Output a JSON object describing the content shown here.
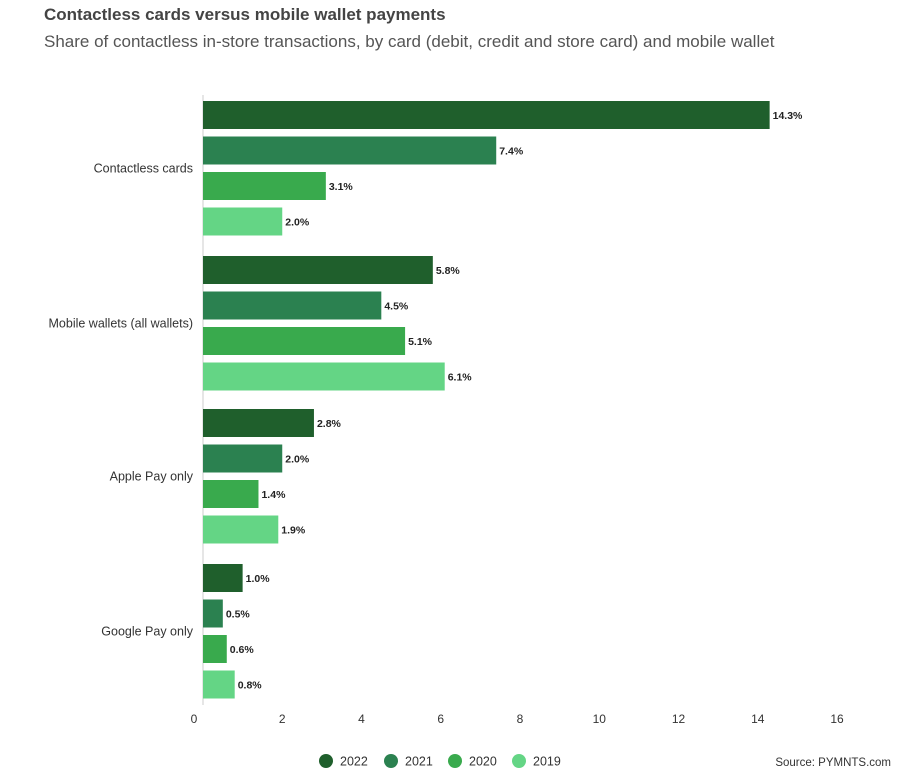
{
  "chart_data": {
    "type": "bar",
    "orientation": "horizontal",
    "title": "Contactless cards versus mobile wallet payments",
    "subtitle": "Share of contactless in-store transactions, by card (debit, credit and store card) and mobile wallet",
    "categories": [
      "Contactless cards",
      "Mobile wallets (all wallets)",
      "Apple Pay only",
      "Google Pay only"
    ],
    "series": [
      {
        "name": "2022",
        "color": "#1f5f2c",
        "values": [
          14.3,
          5.8,
          2.8,
          1.0
        ],
        "labels": [
          "14.3%",
          "5.8%",
          "2.8%",
          "1.0%"
        ]
      },
      {
        "name": "2021",
        "color": "#2b8150",
        "values": [
          7.4,
          4.5,
          2.0,
          0.5
        ],
        "labels": [
          "7.4%",
          "4.5%",
          "2.0%",
          "0.5%"
        ]
      },
      {
        "name": "2020",
        "color": "#39aa4d",
        "values": [
          3.1,
          5.1,
          1.4,
          0.6
        ],
        "labels": [
          "3.1%",
          "5.1%",
          "1.4%",
          "0.6%"
        ]
      },
      {
        "name": "2019",
        "color": "#64d585",
        "values": [
          2.0,
          6.1,
          1.9,
          0.8
        ],
        "labels": [
          "2.0%",
          "6.1%",
          "1.9%",
          "0.8%"
        ]
      }
    ],
    "xlim": [
      0,
      16
    ],
    "xticks": [
      0,
      2,
      4,
      6,
      8,
      10,
      12,
      14,
      16
    ],
    "xtick_labels": [
      "0",
      "2",
      "4",
      "6",
      "8",
      "10",
      "12",
      "14",
      "16"
    ],
    "grid": false,
    "legend_position": "bottom-center"
  },
  "source": "Source: PYMNTS.com"
}
